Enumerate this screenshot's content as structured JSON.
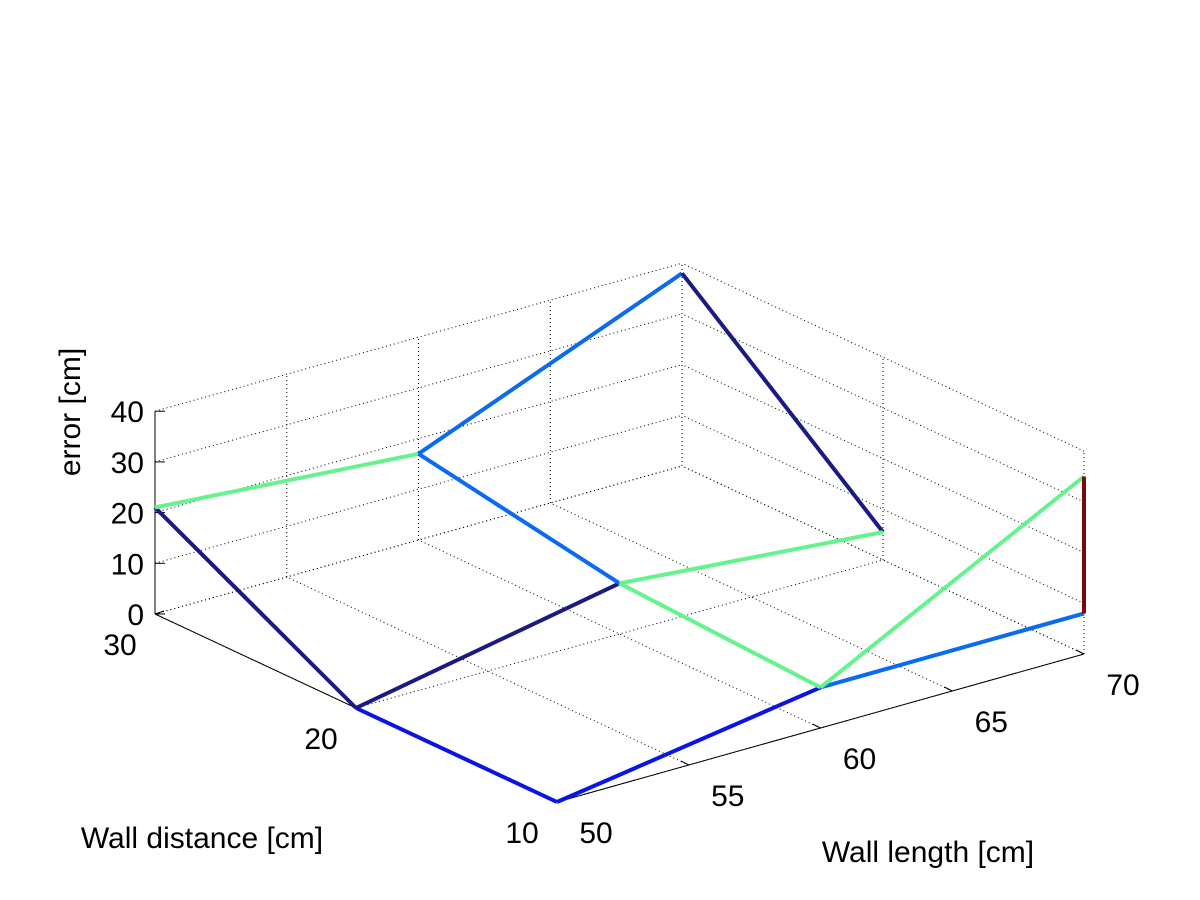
{
  "chart_data": {
    "type": "line",
    "view": "3d",
    "title": "",
    "xlabel": "Wall length [cm]",
    "ylabel": "Wall distance [cm]",
    "zlabel": "error [cm]",
    "xlim": [
      50,
      70
    ],
    "ylim": [
      10,
      30
    ],
    "zlim": [
      0,
      40
    ],
    "x_ticks": [
      "50",
      "55",
      "60",
      "65",
      "70"
    ],
    "y_ticks": [
      "10",
      "20",
      "30"
    ],
    "z_ticks": [
      "0",
      "10",
      "20",
      "30",
      "40"
    ],
    "grid": true,
    "colors": {
      "navy": "#1a1a80",
      "blue": "#0a14e6",
      "azure": "#0a6af0",
      "mint": "#66f28c",
      "maroon": "#7a0a0a"
    },
    "segments": [
      {
        "color": "navy",
        "from": {
          "x": 50,
          "y": 30,
          "z": 21
        },
        "to": {
          "x": 50,
          "y": 20,
          "z": 0
        }
      },
      {
        "color": "blue",
        "from": {
          "x": 50,
          "y": 20,
          "z": 0
        },
        "to": {
          "x": 50,
          "y": 10,
          "z": 0
        }
      },
      {
        "color": "navy",
        "from": {
          "x": 50,
          "y": 20,
          "z": 0
        },
        "to": {
          "x": 60,
          "y": 20,
          "z": 10
        }
      },
      {
        "color": "blue",
        "from": {
          "x": 50,
          "y": 10,
          "z": 0
        },
        "to": {
          "x": 60,
          "y": 10,
          "z": 8
        }
      },
      {
        "color": "mint",
        "from": {
          "x": 50,
          "y": 30,
          "z": 21
        },
        "to": {
          "x": 60,
          "y": 30,
          "z": 17
        }
      },
      {
        "color": "azure",
        "from": {
          "x": 60,
          "y": 30,
          "z": 17
        },
        "to": {
          "x": 60,
          "y": 20,
          "z": 10
        }
      },
      {
        "color": "azure",
        "from": {
          "x": 60,
          "y": 30,
          "z": 17
        },
        "to": {
          "x": 70,
          "y": 30,
          "z": 38
        }
      },
      {
        "color": "navy",
        "from": {
          "x": 70,
          "y": 30,
          "z": 38
        },
        "to": {
          "x": 70,
          "y": 20,
          "z": 5.5
        }
      },
      {
        "color": "mint",
        "from": {
          "x": 60,
          "y": 20,
          "z": 10
        },
        "to": {
          "x": 70,
          "y": 20,
          "z": 5.5
        }
      },
      {
        "color": "mint",
        "from": {
          "x": 60,
          "y": 10,
          "z": 8
        },
        "to": {
          "x": 60,
          "y": 20,
          "z": 10
        }
      },
      {
        "color": "azure",
        "from": {
          "x": 60,
          "y": 10,
          "z": 8
        },
        "to": {
          "x": 70,
          "y": 10,
          "z": 8
        }
      },
      {
        "color": "mint",
        "from": {
          "x": 60,
          "y": 10,
          "z": 8
        },
        "to": {
          "x": 70,
          "y": 10,
          "z": 35
        }
      },
      {
        "color": "maroon",
        "from": {
          "x": 70,
          "y": 10,
          "z": 8
        },
        "to": {
          "x": 70,
          "y": 10,
          "z": 35
        }
      }
    ]
  }
}
